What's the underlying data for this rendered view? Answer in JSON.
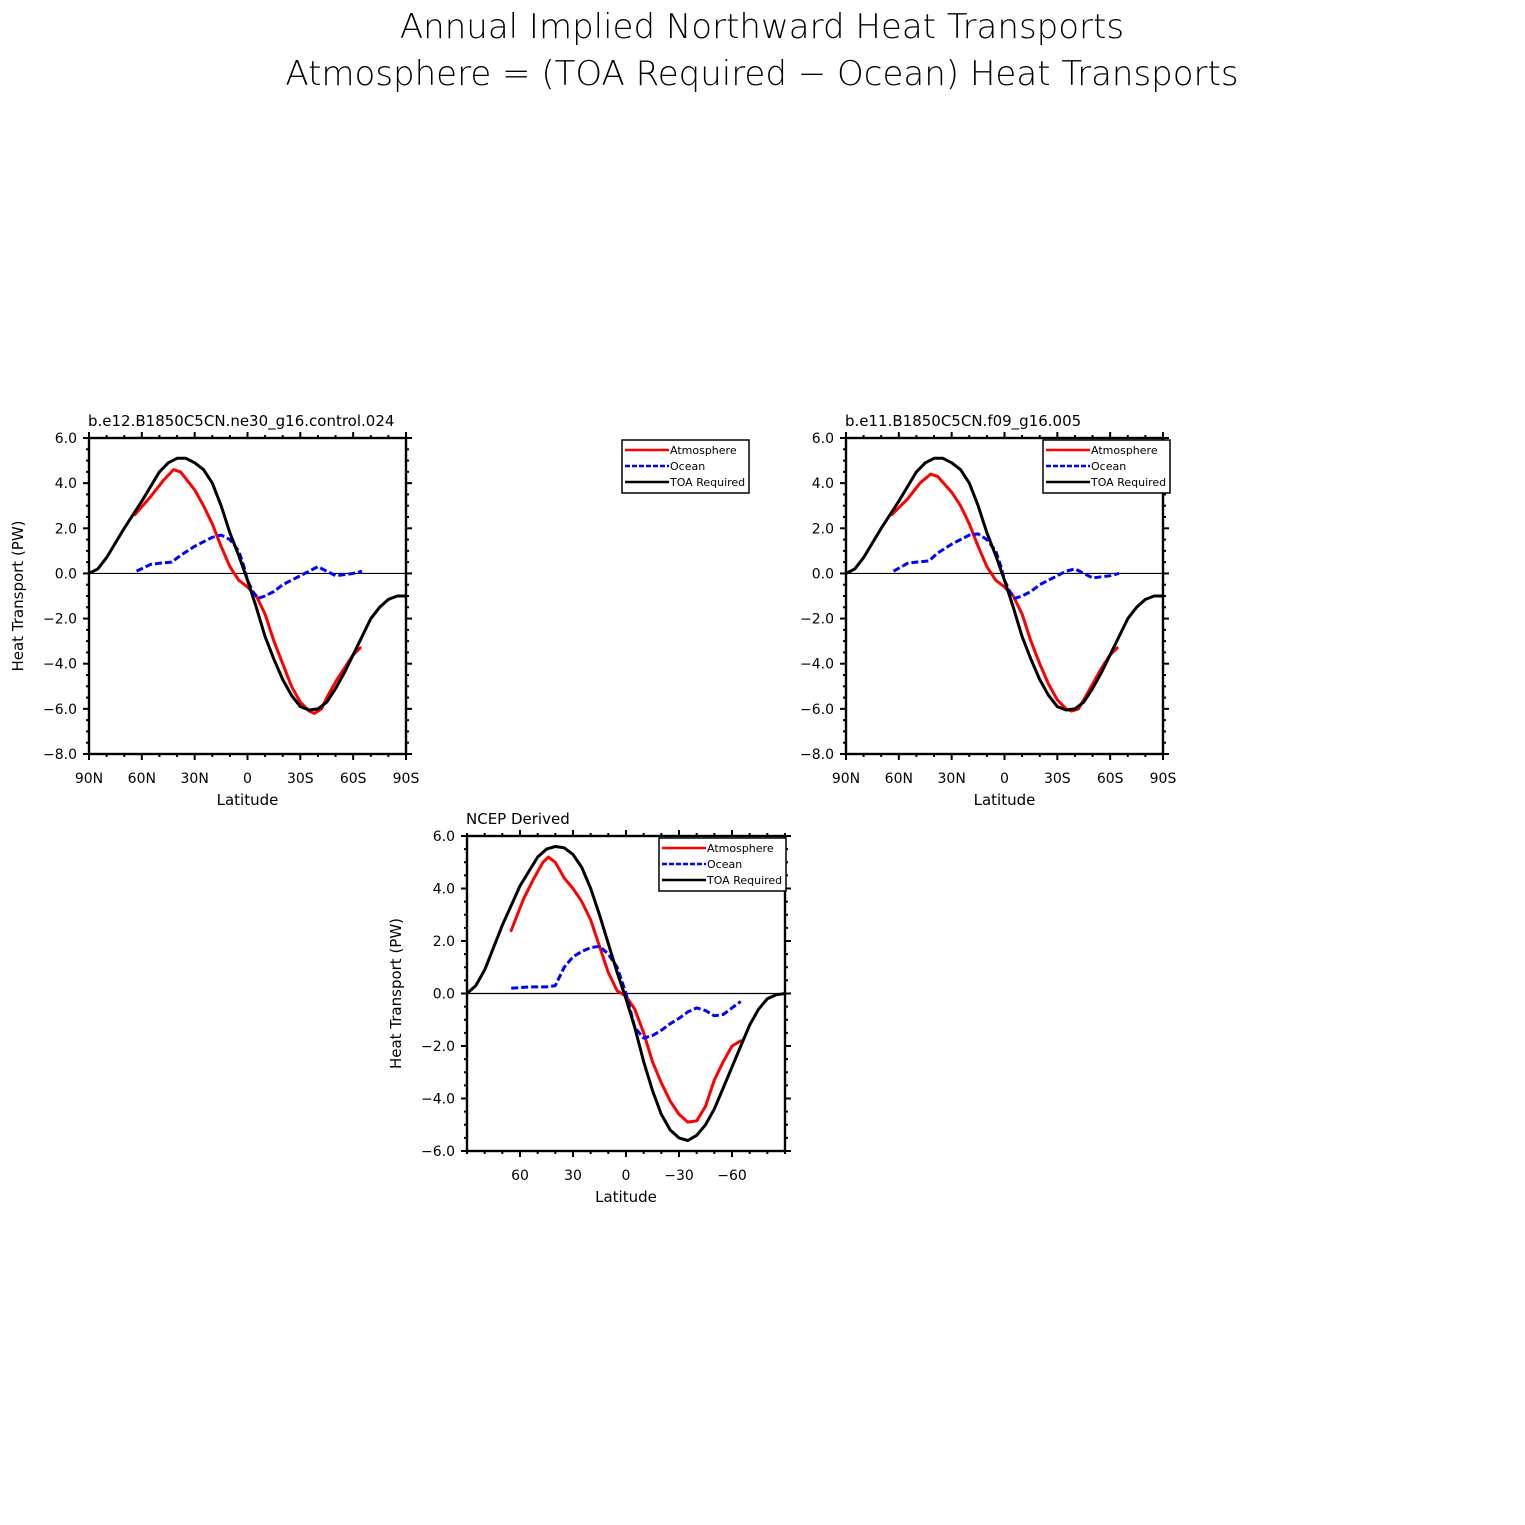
{
  "title": "Annual Implied Northward Heat Transports",
  "subtitle": "Atmosphere = (TOA Required − Ocean) Heat Transports",
  "colors": {
    "atmosphere": "#ff0000",
    "ocean": "#0000ff",
    "toa": "#000000",
    "zero_line": "#000000"
  },
  "chart_data": [
    {
      "type": "line",
      "panel_title": "b.e12.B1850C5CN.ne30_g16.control.024",
      "xlabel": "Latitude",
      "ylabel": "Heat Transport (PW)",
      "xlim": [
        90,
        -90
      ],
      "ylim": [
        -8,
        6
      ],
      "x_ticks": [
        90,
        60,
        30,
        0,
        -30,
        -60,
        -90
      ],
      "x_tick_labels": [
        "90N",
        "60N",
        "30N",
        "0",
        "30S",
        "60S",
        "90S"
      ],
      "y_ticks": [
        6,
        4,
        2,
        0,
        -2,
        -4,
        -6,
        -8
      ],
      "y_tick_labels": [
        "6.0",
        "4.0",
        "2.0",
        "0.0",
        "−2.0",
        "−4.0",
        "−6.0",
        "−8.0"
      ],
      "legend": {
        "position": "outside-right",
        "entries": [
          "Atmosphere",
          "Ocean",
          "TOA Required"
        ]
      },
      "series": [
        {
          "name": "Atmosphere",
          "style": "solid",
          "color": "#ff0000",
          "x": [
            64,
            55,
            48,
            42,
            38,
            30,
            25,
            20,
            15,
            10,
            5,
            0,
            -5,
            -10,
            -15,
            -20,
            -25,
            -30,
            -35,
            -38,
            -42,
            -45,
            -50,
            -55,
            -60,
            -64
          ],
          "y": [
            2.6,
            3.4,
            4.1,
            4.6,
            4.5,
            3.7,
            3.0,
            2.2,
            1.2,
            0.3,
            -0.3,
            -0.6,
            -1.0,
            -1.8,
            -3.0,
            -4.0,
            -5.0,
            -5.7,
            -6.1,
            -6.2,
            -6.0,
            -5.5,
            -4.8,
            -4.2,
            -3.6,
            -3.3
          ]
        },
        {
          "name": "Ocean",
          "style": "dashed",
          "color": "#0000ff",
          "x": [
            63,
            55,
            50,
            43,
            38,
            30,
            20,
            15,
            10,
            5,
            2,
            0,
            -3,
            -6,
            -10,
            -15,
            -20,
            -25,
            -30,
            -35,
            -40,
            -45,
            -50,
            -55,
            -60,
            -65
          ],
          "y": [
            0.1,
            0.4,
            0.45,
            0.5,
            0.8,
            1.2,
            1.6,
            1.7,
            1.5,
            1.0,
            0.3,
            -0.3,
            -0.8,
            -1.1,
            -1.0,
            -0.8,
            -0.5,
            -0.3,
            -0.1,
            0.1,
            0.3,
            0.1,
            -0.1,
            -0.05,
            0.0,
            0.1
          ]
        },
        {
          "name": "TOA Required",
          "style": "solid",
          "color": "#000000",
          "x": [
            90,
            85,
            80,
            70,
            60,
            50,
            45,
            40,
            35,
            30,
            25,
            20,
            15,
            10,
            5,
            0,
            -5,
            -10,
            -15,
            -20,
            -25,
            -30,
            -35,
            -40,
            -45,
            -50,
            -55,
            -60,
            -65,
            -70,
            -75,
            -80,
            -85,
            -90
          ],
          "y": [
            0.0,
            0.2,
            0.7,
            2.0,
            3.2,
            4.5,
            4.9,
            5.1,
            5.1,
            4.9,
            4.6,
            4.0,
            3.0,
            1.8,
            0.8,
            -0.3,
            -1.5,
            -2.8,
            -3.8,
            -4.7,
            -5.4,
            -5.9,
            -6.05,
            -6.0,
            -5.7,
            -5.1,
            -4.4,
            -3.6,
            -2.8,
            -2.0,
            -1.5,
            -1.15,
            -1.0,
            -1.0
          ]
        }
      ]
    },
    {
      "type": "line",
      "panel_title": "b.e11.B1850C5CN.f09_g16.005",
      "xlabel": "Latitude",
      "ylabel": "",
      "xlim": [
        90,
        -90
      ],
      "ylim": [
        -8,
        6
      ],
      "x_ticks": [
        90,
        60,
        30,
        0,
        -30,
        -60,
        -90
      ],
      "x_tick_labels": [
        "90N",
        "60N",
        "30N",
        "0",
        "30S",
        "60S",
        "90S"
      ],
      "y_ticks": [
        6,
        4,
        2,
        0,
        -2,
        -4,
        -6,
        -8
      ],
      "y_tick_labels": [
        "6.0",
        "4.0",
        "2.0",
        "0.0",
        "−2.0",
        "−4.0",
        "−6.0",
        "−8.0"
      ],
      "legend": {
        "position": "top-right",
        "entries": [
          "Atmosphere",
          "Ocean",
          "TOA Required"
        ]
      },
      "series": [
        {
          "name": "Atmosphere",
          "style": "solid",
          "color": "#ff0000",
          "x": [
            64,
            55,
            48,
            42,
            38,
            30,
            25,
            20,
            15,
            10,
            5,
            0,
            -5,
            -10,
            -15,
            -20,
            -25,
            -30,
            -35,
            -38,
            -42,
            -45,
            -50,
            -55,
            -60,
            -64
          ],
          "y": [
            2.6,
            3.3,
            4.0,
            4.4,
            4.3,
            3.6,
            3.0,
            2.2,
            1.2,
            0.3,
            -0.3,
            -0.6,
            -1.0,
            -1.8,
            -3.0,
            -4.0,
            -4.9,
            -5.6,
            -6.0,
            -6.1,
            -6.0,
            -5.6,
            -4.9,
            -4.2,
            -3.6,
            -3.3
          ]
        },
        {
          "name": "Ocean",
          "style": "dashed",
          "color": "#0000ff",
          "x": [
            63,
            55,
            50,
            43,
            38,
            30,
            20,
            15,
            10,
            5,
            2,
            0,
            -3,
            -6,
            -10,
            -15,
            -20,
            -25,
            -30,
            -35,
            -40,
            -45,
            -50,
            -55,
            -60,
            -65
          ],
          "y": [
            0.1,
            0.45,
            0.5,
            0.55,
            0.9,
            1.3,
            1.7,
            1.75,
            1.5,
            1.0,
            0.3,
            -0.3,
            -0.8,
            -1.1,
            -1.0,
            -0.8,
            -0.5,
            -0.3,
            -0.1,
            0.1,
            0.2,
            0.0,
            -0.2,
            -0.15,
            -0.1,
            0.0
          ]
        },
        {
          "name": "TOA Required",
          "style": "solid",
          "color": "#000000",
          "x": [
            90,
            85,
            80,
            70,
            60,
            50,
            45,
            40,
            35,
            30,
            25,
            20,
            15,
            10,
            5,
            0,
            -5,
            -10,
            -15,
            -20,
            -25,
            -30,
            -35,
            -40,
            -45,
            -50,
            -55,
            -60,
            -65,
            -70,
            -75,
            -80,
            -85,
            -90
          ],
          "y": [
            0.0,
            0.2,
            0.7,
            2.0,
            3.2,
            4.5,
            4.9,
            5.1,
            5.1,
            4.9,
            4.6,
            4.0,
            3.0,
            1.8,
            0.8,
            -0.3,
            -1.5,
            -2.8,
            -3.8,
            -4.7,
            -5.4,
            -5.9,
            -6.05,
            -6.0,
            -5.7,
            -5.1,
            -4.4,
            -3.6,
            -2.8,
            -2.0,
            -1.5,
            -1.15,
            -1.0,
            -1.0
          ]
        }
      ]
    },
    {
      "type": "line",
      "panel_title": "NCEP Derived",
      "xlabel": "Latitude",
      "ylabel": "Heat Transport (PW)",
      "xlim": [
        90,
        -90
      ],
      "ylim": [
        -6,
        6
      ],
      "x_ticks": [
        60,
        30,
        0,
        -30,
        -60
      ],
      "x_tick_labels": [
        "60",
        "30",
        "0",
        "−30",
        "−60"
      ],
      "y_ticks": [
        6,
        4,
        2,
        0,
        -2,
        -4,
        -6
      ],
      "y_tick_labels": [
        "6.0",
        "4.0",
        "2.0",
        "0.0",
        "−2.0",
        "−4.0",
        "−6.0"
      ],
      "legend": {
        "position": "top-right",
        "entries": [
          "Atmosphere",
          "Ocean",
          "TOA Required"
        ]
      },
      "series": [
        {
          "name": "Atmosphere",
          "style": "solid",
          "color": "#ff0000",
          "x": [
            65,
            58,
            52,
            47,
            44,
            40,
            35,
            30,
            25,
            20,
            15,
            10,
            5,
            0,
            -5,
            -10,
            -15,
            -20,
            -25,
            -30,
            -35,
            -40,
            -45,
            -50,
            -55,
            -60,
            -65
          ],
          "y": [
            2.4,
            3.6,
            4.4,
            5.0,
            5.2,
            5.0,
            4.4,
            4.0,
            3.5,
            2.8,
            1.8,
            0.8,
            0.1,
            -0.1,
            -0.6,
            -1.5,
            -2.6,
            -3.4,
            -4.1,
            -4.6,
            -4.9,
            -4.85,
            -4.3,
            -3.3,
            -2.6,
            -2.0,
            -1.8
          ]
        },
        {
          "name": "Ocean",
          "style": "dashed",
          "color": "#0000ff",
          "x": [
            65,
            55,
            50,
            45,
            40,
            35,
            30,
            25,
            20,
            15,
            10,
            5,
            0,
            -5,
            -10,
            -15,
            -20,
            -25,
            -30,
            -35,
            -40,
            -45,
            -50,
            -55,
            -60,
            -65
          ],
          "y": [
            0.2,
            0.25,
            0.25,
            0.25,
            0.3,
            1.0,
            1.4,
            1.6,
            1.75,
            1.8,
            1.5,
            1.0,
            0.0,
            -1.3,
            -1.7,
            -1.6,
            -1.4,
            -1.15,
            -0.95,
            -0.7,
            -0.55,
            -0.65,
            -0.85,
            -0.8,
            -0.55,
            -0.3
          ]
        },
        {
          "name": "TOA Required",
          "style": "solid",
          "color": "#000000",
          "x": [
            90,
            85,
            80,
            70,
            60,
            50,
            45,
            40,
            35,
            30,
            25,
            20,
            15,
            10,
            5,
            0,
            -5,
            -10,
            -15,
            -20,
            -25,
            -30,
            -35,
            -40,
            -45,
            -50,
            -55,
            -60,
            -65,
            -70,
            -75,
            -80,
            -85,
            -90
          ],
          "y": [
            0.0,
            0.3,
            0.9,
            2.6,
            4.1,
            5.2,
            5.5,
            5.6,
            5.55,
            5.3,
            4.8,
            4.0,
            3.0,
            1.9,
            0.8,
            -0.2,
            -1.3,
            -2.6,
            -3.7,
            -4.6,
            -5.2,
            -5.5,
            -5.6,
            -5.4,
            -5.0,
            -4.4,
            -3.6,
            -2.8,
            -2.0,
            -1.2,
            -0.6,
            -0.2,
            -0.05,
            0.0
          ]
        }
      ]
    }
  ]
}
